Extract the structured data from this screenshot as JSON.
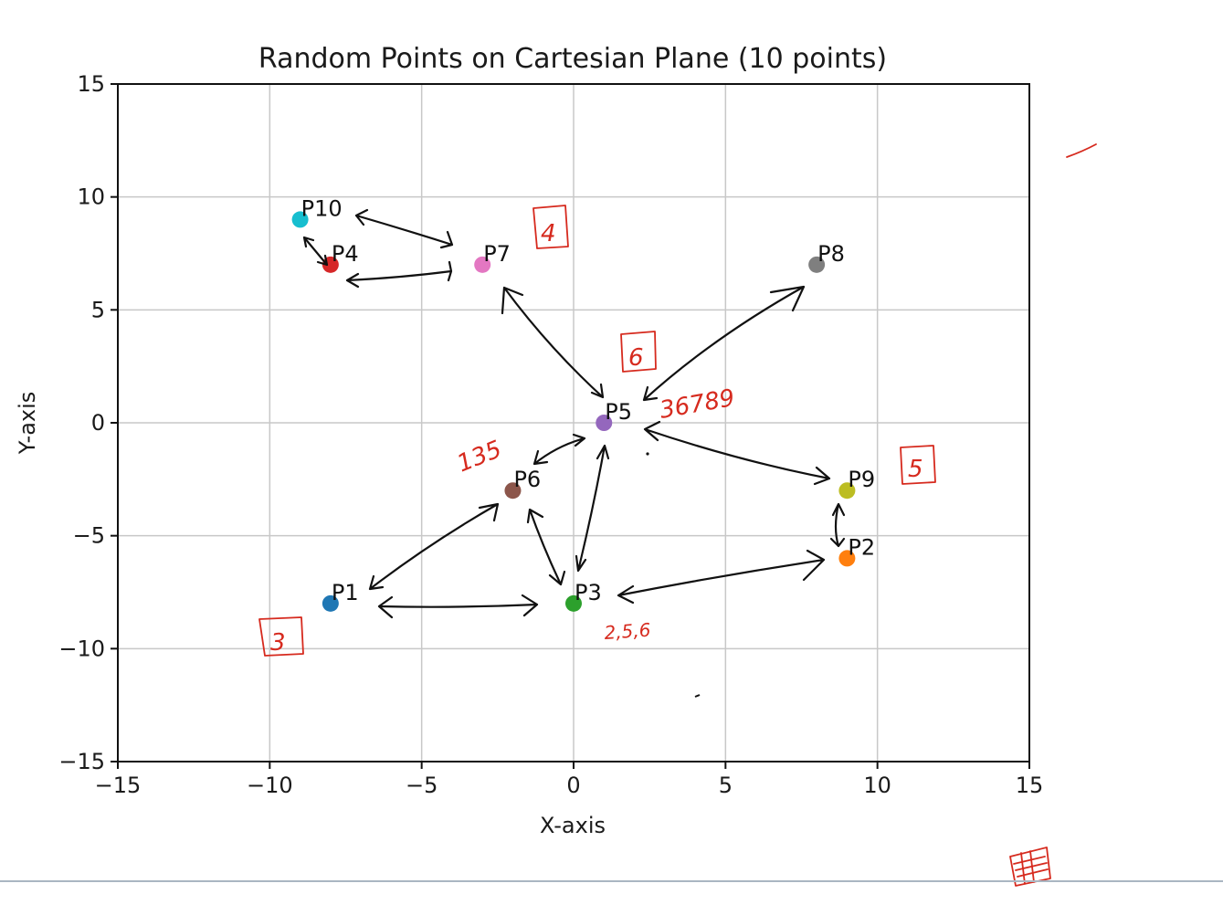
{
  "chart_data": {
    "type": "scatter",
    "title": "Random Points on Cartesian Plane (10 points)",
    "xlabel": "X-axis",
    "ylabel": "Y-axis",
    "xlim": [
      -15,
      15
    ],
    "ylim": [
      -15,
      15
    ],
    "grid": true,
    "xticks": [
      -15,
      -10,
      -5,
      0,
      5,
      10,
      15
    ],
    "yticks": [
      -15,
      -10,
      -5,
      0,
      5,
      10,
      15
    ],
    "points": [
      {
        "label": "P1",
        "x": -8,
        "y": -8,
        "color": "#1f77b4"
      },
      {
        "label": "P2",
        "x": 9,
        "y": -6,
        "color": "#ff7f0e"
      },
      {
        "label": "P3",
        "x": 0,
        "y": -8,
        "color": "#2ca02c"
      },
      {
        "label": "P4",
        "x": -8,
        "y": 7,
        "color": "#d62728"
      },
      {
        "label": "P5",
        "x": 1,
        "y": 0,
        "color": "#9467bd"
      },
      {
        "label": "P6",
        "x": -2,
        "y": -3,
        "color": "#8c564b"
      },
      {
        "label": "P7",
        "x": -3,
        "y": 7,
        "color": "#e377c2"
      },
      {
        "label": "P8",
        "x": 8,
        "y": 7,
        "color": "#7f7f7f"
      },
      {
        "label": "P9",
        "x": 9,
        "y": -3,
        "color": "#bcbd22"
      },
      {
        "label": "P10",
        "x": -9,
        "y": 9,
        "color": "#17becf"
      }
    ]
  },
  "annotations": {
    "ink_color": "#d62a1e",
    "boxed_numbers": [
      "4",
      "6",
      "5",
      "3"
    ],
    "notes": [
      "135",
      "36789",
      "2,5,6"
    ]
  }
}
